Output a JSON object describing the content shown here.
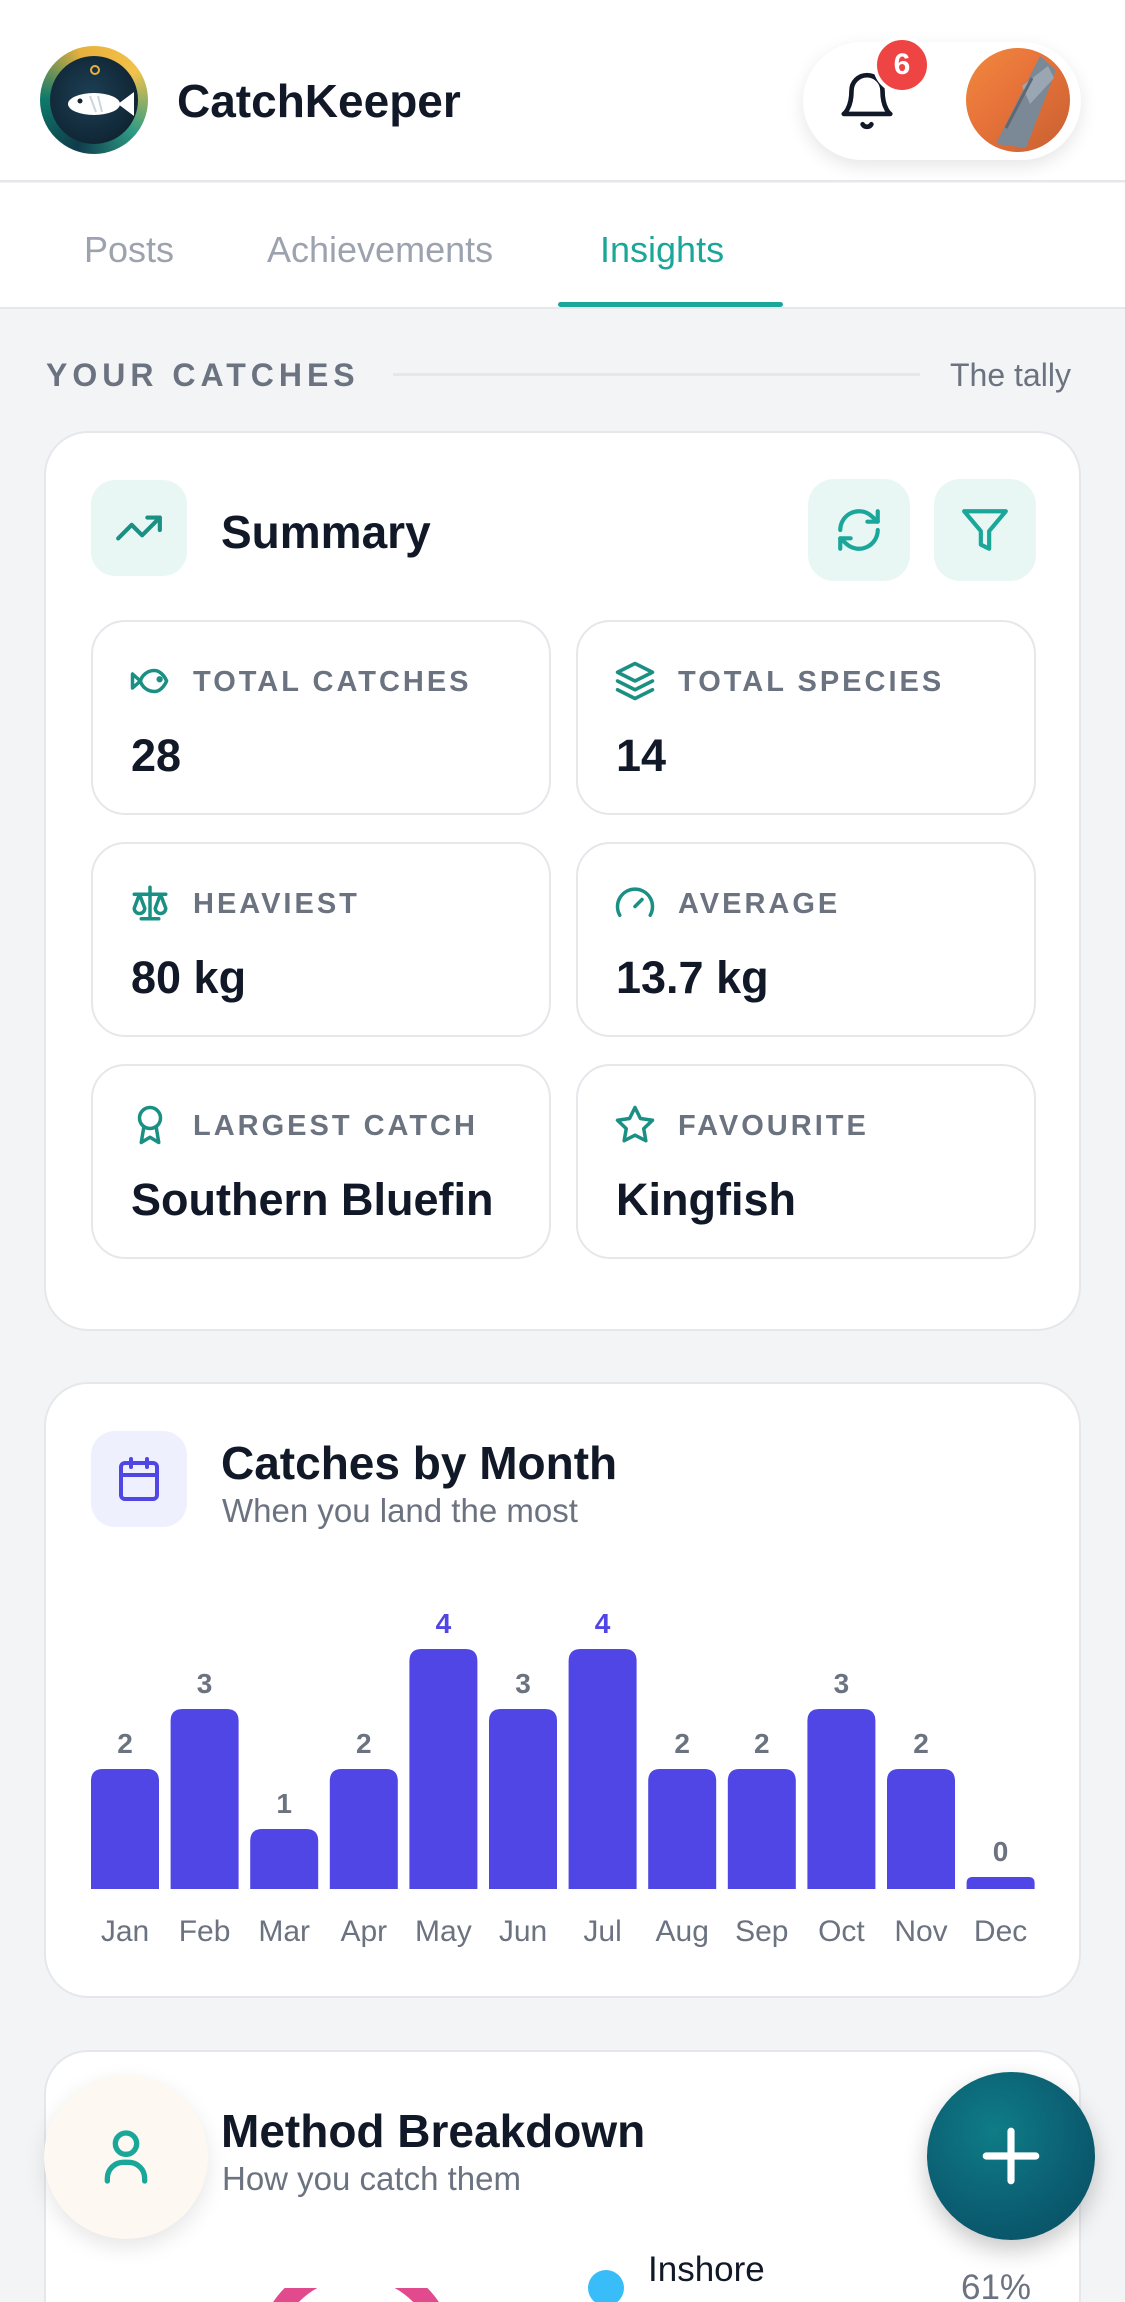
{
  "app": {
    "title": "CatchKeeper",
    "notification_count": "6"
  },
  "tabs": [
    {
      "label": "Posts"
    },
    {
      "label": "Achievements"
    },
    {
      "label": "Insights",
      "active": true
    }
  ],
  "section": {
    "label": "YOUR CATCHES",
    "aside": "The tally"
  },
  "summary": {
    "title": "Summary",
    "stats": [
      {
        "label": "TOTAL CATCHES",
        "value": "28",
        "icon": "fish-icon"
      },
      {
        "label": "TOTAL SPECIES",
        "value": "14",
        "icon": "layers-icon"
      },
      {
        "label": "HEAVIEST",
        "value": "80 kg",
        "icon": "scale-icon"
      },
      {
        "label": "AVERAGE",
        "value": "13.7 kg",
        "icon": "gauge-icon"
      },
      {
        "label": "LARGEST CATCH",
        "value": "Southern Bluefin",
        "icon": "award-icon"
      },
      {
        "label": "FAVOURITE",
        "value": "Kingfish",
        "icon": "star-icon"
      }
    ]
  },
  "monthly": {
    "title": "Catches by Month",
    "subtitle": "When you land the most"
  },
  "chart_data": {
    "type": "bar",
    "categories": [
      "Jan",
      "Feb",
      "Mar",
      "Apr",
      "May",
      "Jun",
      "Jul",
      "Aug",
      "Sep",
      "Oct",
      "Nov",
      "Dec"
    ],
    "values": [
      2,
      3,
      1,
      2,
      4,
      3,
      4,
      2,
      2,
      3,
      2,
      0
    ],
    "title": "Catches by Month",
    "ylim": [
      0,
      4
    ],
    "grid": false,
    "bar_color": "#4f46e5",
    "highlight_label_color": "#4f46e5"
  },
  "methods": {
    "title": "Method Breakdown",
    "subtitle": "How you catch them",
    "items": [
      {
        "label": "Inshore",
        "percent": "61%",
        "color": "#38bdf8"
      }
    ]
  },
  "colors": {
    "accent": "#1aa79a",
    "chart": "#4f46e5",
    "badge": "#ef4444"
  }
}
